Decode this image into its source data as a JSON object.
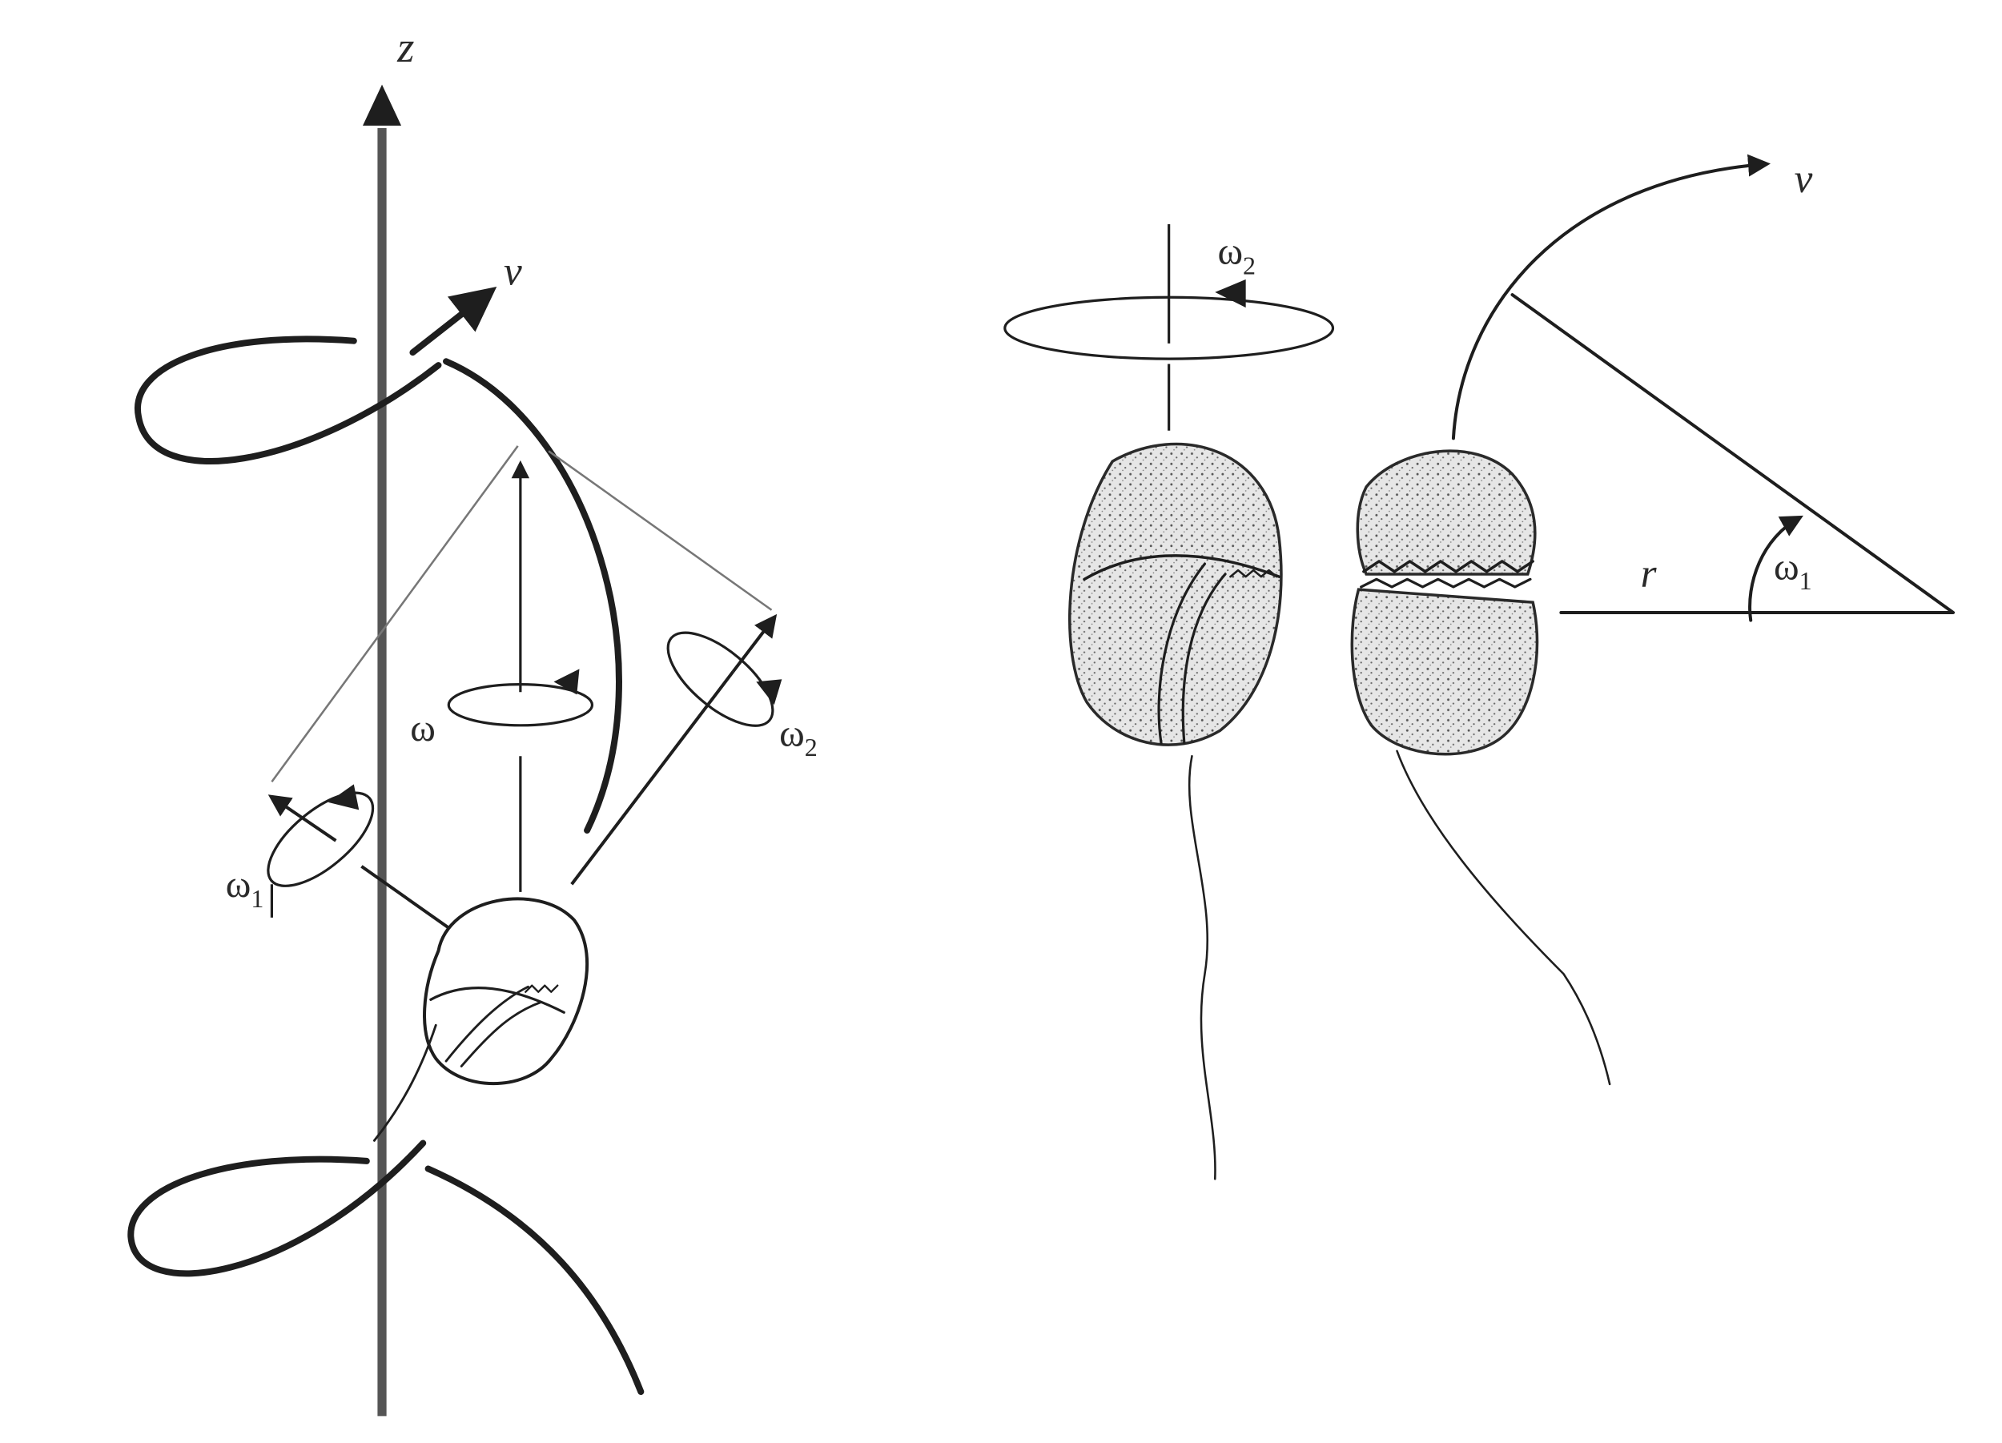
{
  "left_panel": {
    "axis_label": "z",
    "velocity_label": "v",
    "omega_label": "ω",
    "omega1_label": {
      "symbol": "ω",
      "subscript": "1"
    },
    "omega2_label": {
      "symbol": "ω",
      "subscript": "2"
    }
  },
  "right_panel": {
    "velocity_label": "v",
    "radius_label": "r",
    "omega1_label": {
      "symbol": "ω",
      "subscript": "1"
    },
    "omega2_label": {
      "symbol": "ω",
      "subscript": "2"
    }
  },
  "colors": {
    "ink": "#1e1e1e",
    "cell_fill": "#d9d9d9",
    "background": "#ffffff"
  }
}
